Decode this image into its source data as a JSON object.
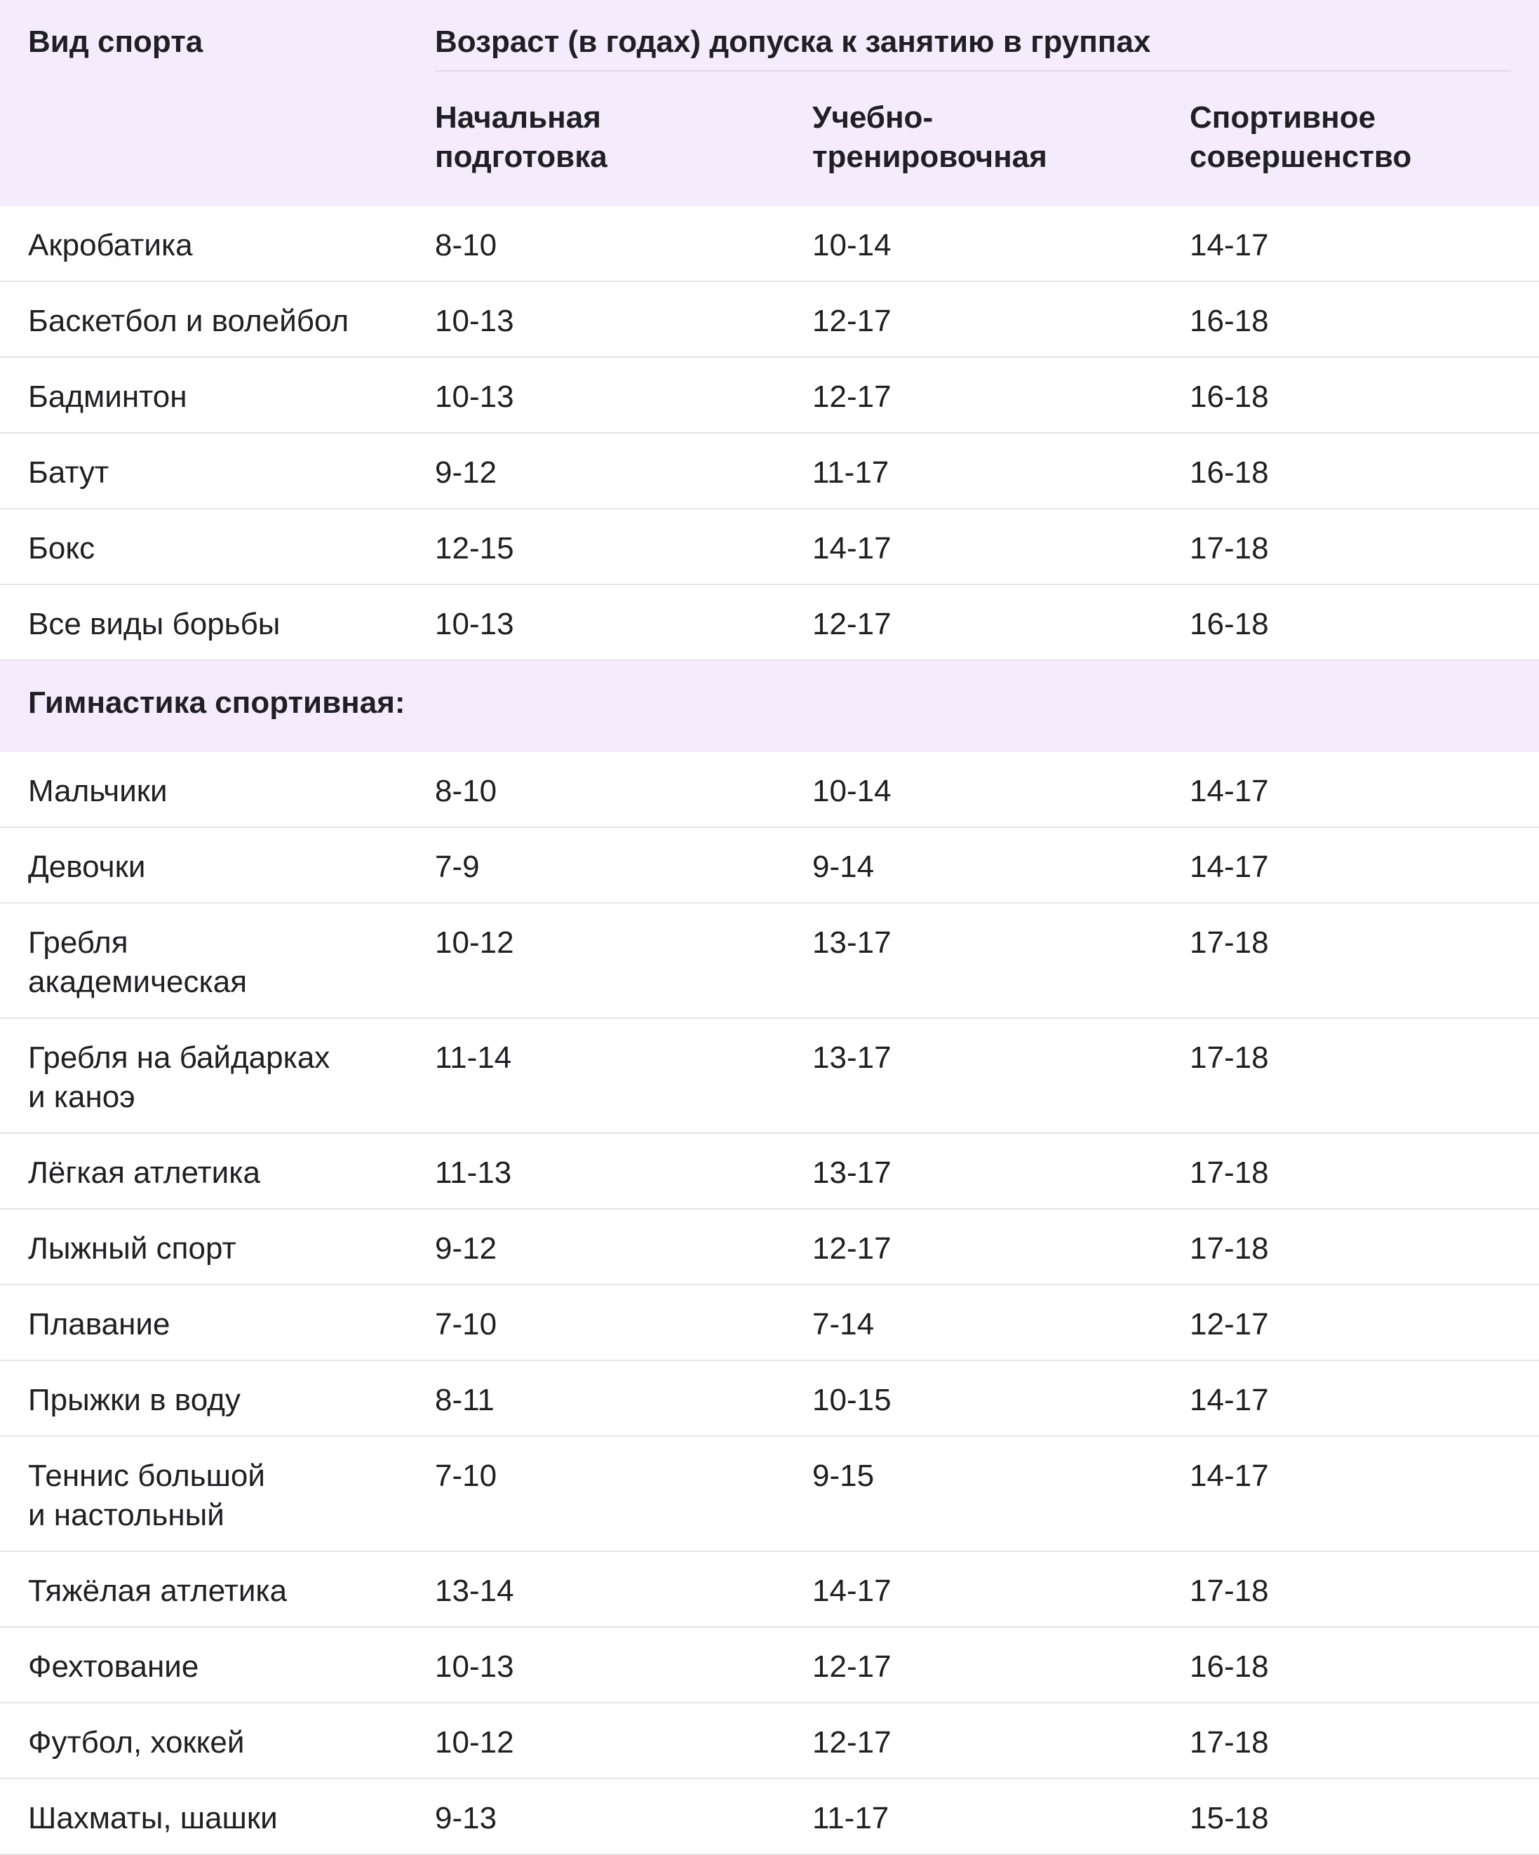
{
  "header": {
    "sport": "Вид спорта",
    "group": "Возраст (в годах) допуска к занятию в группах",
    "col1": "Начальная\nподготовка",
    "col2": "Учебно-\nтренировочная",
    "col3": "Спортивное\nсовершенство"
  },
  "rows": [
    {
      "sport": "Акробатика",
      "c1": "8-10",
      "c2": "10-14",
      "c3": "14-17"
    },
    {
      "sport": "Баскетбол и волейбол",
      "c1": "10-13",
      "c2": "12-17",
      "c3": "16-18"
    },
    {
      "sport": "Бадминтон",
      "c1": "10-13",
      "c2": "12-17",
      "c3": "16-18"
    },
    {
      "sport": "Батут",
      "c1": "9-12",
      "c2": "11-17",
      "c3": "16-18"
    },
    {
      "sport": "Бокс",
      "c1": "12-15",
      "c2": "14-17",
      "c3": "17-18"
    },
    {
      "sport": "Все виды борьбы",
      "c1": "10-13",
      "c2": "12-17",
      "c3": "16-18"
    },
    {
      "sport": "Гимнастика спортивная:",
      "section": true
    },
    {
      "sport": "Мальчики",
      "c1": "8-10",
      "c2": "10-14",
      "c3": "14-17"
    },
    {
      "sport": "Девочки",
      "c1": "7-9",
      "c2": "9-14",
      "c3": "14-17"
    },
    {
      "sport": "Гребля\nакадемическая",
      "c1": "10-12",
      "c2": "13-17",
      "c3": "17-18"
    },
    {
      "sport": "Гребля на байдарках\nи каноэ",
      "c1": "11-14",
      "c2": "13-17",
      "c3": "17-18"
    },
    {
      "sport": "Лёгкая атлетика",
      "c1": "11-13",
      "c2": "13-17",
      "c3": "17-18"
    },
    {
      "sport": "Лыжный спорт",
      "c1": "9-12",
      "c2": "12-17",
      "c3": "17-18"
    },
    {
      "sport": "Плавание",
      "c1": "7-10",
      "c2": "7-14",
      "c3": "12-17"
    },
    {
      "sport": "Прыжки в воду",
      "c1": "8-11",
      "c2": "10-15",
      "c3": "14-17"
    },
    {
      "sport": "Теннис большой\nи настольный",
      "c1": "7-10",
      "c2": "9-15",
      "c3": "14-17"
    },
    {
      "sport": "Тяжёлая атлетика",
      "c1": "13-14",
      "c2": "14-17",
      "c3": "17-18"
    },
    {
      "sport": "Фехтование",
      "c1": "10-13",
      "c2": "12-17",
      "c3": "16-18"
    },
    {
      "sport": "Футбол, хоккей",
      "c1": "10-12",
      "c2": "12-17",
      "c3": "17-18"
    },
    {
      "sport": "Шахматы, шашки",
      "c1": "9-13",
      "c2": "11-17",
      "c3": "15-18"
    }
  ]
}
